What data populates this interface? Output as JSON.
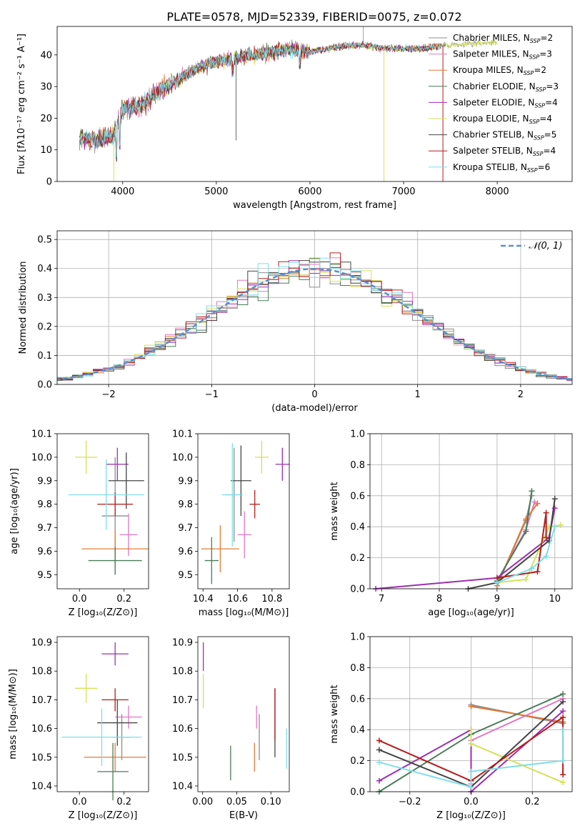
{
  "title": "PLATE=0578, MJD=52339, FIBERID=0075, z=0.072",
  "colors": {
    "grid": "#b0b0b0",
    "normal": "#5b8fd1"
  },
  "models": [
    {
      "label": "Chabrier MILES, N",
      "nssp": "=2",
      "color": "#8c8c8c"
    },
    {
      "label": "Salpeter MILES, N",
      "nssp": "=3",
      "color": "#e377c2"
    },
    {
      "label": "Kroupa MILES, N",
      "nssp": "=2",
      "color": "#e07b39"
    },
    {
      "label": "Chabrier ELODIE, N",
      "nssp": "=3",
      "color": "#4a7c59"
    },
    {
      "label": "Salpeter ELODIE, N",
      "nssp": "=4",
      "color": "#9c2fb0"
    },
    {
      "label": "Kroupa ELODIE, N",
      "nssp": "=4",
      "color": "#d4e157"
    },
    {
      "label": "Chabrier STELIB, N",
      "nssp": "=5",
      "color": "#444444"
    },
    {
      "label": "Salpeter STELIB, N",
      "nssp": "=4",
      "color": "#b71c1c"
    },
    {
      "label": "Kroupa STELIB, N",
      "nssp": "=6",
      "color": "#80deea"
    }
  ],
  "chart_data": [
    {
      "id": "spectrum",
      "type": "line",
      "xlabel": "wavelength [Angstrom, rest frame]",
      "ylabel": "Flux [fλ10⁻¹⁷ erg cm⁻² s⁻¹ A⁻¹]",
      "xlim": [
        3300,
        8800
      ],
      "ylim": [
        0,
        49
      ],
      "xticks": [
        4000,
        5000,
        6000,
        7000,
        8000
      ],
      "yticks": [
        0,
        10,
        20,
        30,
        40
      ],
      "x": [
        3550,
        3700,
        3900,
        4000,
        4200,
        4400,
        4600,
        4800,
        5000,
        5200,
        5400,
        5600,
        5800,
        6000,
        6200,
        6400,
        6600,
        6800,
        7000,
        7200,
        7400
      ],
      "y": [
        14,
        13,
        14,
        23,
        24,
        29,
        32,
        36,
        38,
        39,
        40,
        41,
        42,
        41,
        42,
        43,
        43,
        42,
        42,
        42,
        43
      ],
      "spectrum_end": 8000,
      "spectrum_end_flux": 44
    },
    {
      "id": "residuals",
      "type": "area",
      "xlabel": "(data-model)/error",
      "ylabel": "Normed distribution",
      "xlim": [
        -2.5,
        2.5
      ],
      "ylim": [
        0,
        0.53
      ],
      "xticks": [
        -2,
        -1,
        0,
        1,
        2
      ],
      "yticks": [
        0.0,
        0.1,
        0.2,
        0.3,
        0.4,
        0.5
      ],
      "legend": "𝒩(0, 1)",
      "bin_width": 0.1
    },
    {
      "id": "z-age",
      "type": "scatter",
      "xlabel": "Z [log₁₀(Z/Z⊙)]",
      "ylabel": "age  [log₁₀(age/yr)]",
      "xlim": [
        -0.1,
        0.31
      ],
      "ylim": [
        9.44,
        10.1
      ],
      "xticks": [
        0.0,
        0.2
      ],
      "yticks": [
        9.5,
        9.6,
        9.7,
        9.8,
        9.9,
        10.0,
        10.1
      ],
      "points": [
        {
          "x": 0.16,
          "y": 9.75,
          "xerr": 0.06,
          "yerr": 0.25
        },
        {
          "x": 0.22,
          "y": 9.67,
          "xerr": 0.04,
          "yerr": 0.09
        },
        {
          "x": 0.16,
          "y": 9.61,
          "xerr": 0.15,
          "yerr": 0.08
        },
        {
          "x": 0.16,
          "y": 9.56,
          "xerr": 0.12,
          "yerr": 0.06
        },
        {
          "x": 0.17,
          "y": 9.97,
          "xerr": 0.05,
          "yerr": 0.07
        },
        {
          "x": 0.03,
          "y": 10.0,
          "xerr": 0.05,
          "yerr": 0.07
        },
        {
          "x": 0.21,
          "y": 9.9,
          "xerr": 0.08,
          "yerr": 0.12
        },
        {
          "x": 0.16,
          "y": 9.8,
          "xerr": 0.08,
          "yerr": 0.05
        },
        {
          "x": 0.12,
          "y": 9.84,
          "xerr": 0.17,
          "yerr": 0.15
        }
      ]
    },
    {
      "id": "mass-age",
      "type": "scatter",
      "xlabel": "mass [log₁₀(M/M⊙)]",
      "ylabel": "",
      "xlim": [
        10.37,
        10.9
      ],
      "ylim": [
        9.44,
        10.1
      ],
      "xticks": [
        10.4,
        10.6,
        10.8
      ],
      "yticks": [
        9.5,
        9.6,
        9.7,
        9.8,
        9.9,
        10.0,
        10.1
      ],
      "points": [
        {
          "x": 10.58,
          "y": 9.84,
          "xerr": 0.05,
          "yerr": 0.2
        },
        {
          "x": 10.64,
          "y": 9.67,
          "xerr": 0.04,
          "yerr": 0.1
        },
        {
          "x": 10.5,
          "y": 9.61,
          "xerr": 0.11,
          "yerr": 0.1
        },
        {
          "x": 10.45,
          "y": 9.56,
          "xerr": 0.04,
          "yerr": 0.1
        },
        {
          "x": 10.86,
          "y": 9.97,
          "xerr": 0.04,
          "yerr": 0.07
        },
        {
          "x": 10.74,
          "y": 10.0,
          "xerr": 0.04,
          "yerr": 0.07
        },
        {
          "x": 10.62,
          "y": 9.9,
          "xerr": 0.06,
          "yerr": 0.15
        },
        {
          "x": 10.7,
          "y": 9.8,
          "xerr": 0.03,
          "yerr": 0.06
        },
        {
          "x": 10.57,
          "y": 9.84,
          "xerr": 0.06,
          "yerr": 0.22
        }
      ]
    },
    {
      "id": "age-weight",
      "type": "line",
      "xlabel": "age  [log₁₀(age/yr)]",
      "ylabel": "mass weight",
      "xlim": [
        6.8,
        10.3
      ],
      "ylim": [
        0,
        1.0
      ],
      "xticks": [
        7,
        8,
        9,
        10
      ],
      "yticks": [
        0.0,
        0.2,
        0.4,
        0.6,
        0.8,
        1.0
      ],
      "series": [
        {
          "x": [
            9.0,
            9.5,
            9.6
          ],
          "y": [
            0.02,
            0.44,
            0.6
          ]
        },
        {
          "x": [
            9.0,
            9.5,
            9.65
          ],
          "y": [
            0.05,
            0.38,
            0.56
          ]
        },
        {
          "x": [
            9.0,
            9.5,
            9.7
          ],
          "y": [
            0.02,
            0.45,
            0.55
          ]
        },
        {
          "x": [
            9.0,
            9.5,
            9.6
          ],
          "y": [
            0.05,
            0.37,
            0.63
          ]
        },
        {
          "x": [
            6.9,
            9.0,
            9.9,
            10.0
          ],
          "y": [
            0.0,
            0.07,
            0.33,
            0.52
          ]
        },
        {
          "x": [
            9.0,
            9.5,
            9.9,
            10.1
          ],
          "y": [
            0.04,
            0.06,
            0.4,
            0.41
          ]
        },
        {
          "x": [
            8.5,
            9.0,
            9.9,
            10.0
          ],
          "y": [
            0.0,
            0.04,
            0.31,
            0.58
          ]
        },
        {
          "x": [
            9.0,
            9.7,
            9.85,
            9.85
          ],
          "y": [
            0.07,
            0.11,
            0.49,
            0.33
          ]
        },
        {
          "x": [
            9.0,
            9.6,
            9.85,
            10.0
          ],
          "y": [
            0.04,
            0.13,
            0.21,
            0.4
          ]
        }
      ]
    },
    {
      "id": "z-mass",
      "type": "scatter",
      "xlabel": "Z [log₁₀(Z/Z⊙)]",
      "ylabel": "mass [log₁₀(M/M⊙)]",
      "xlim": [
        -0.1,
        0.31
      ],
      "ylim": [
        10.38,
        10.92
      ],
      "xticks": [
        0.0,
        0.2
      ],
      "yticks": [
        10.4,
        10.5,
        10.6,
        10.7,
        10.8,
        10.9
      ],
      "points": [
        {
          "x": 0.19,
          "y": 10.57,
          "xerr": 0.04,
          "yerr": 0.08
        },
        {
          "x": 0.22,
          "y": 10.64,
          "xerr": 0.06,
          "yerr": 0.04
        },
        {
          "x": 0.16,
          "y": 10.5,
          "xerr": 0.14,
          "yerr": 0.05
        },
        {
          "x": 0.15,
          "y": 10.45,
          "xerr": 0.07,
          "yerr": 0.1
        },
        {
          "x": 0.16,
          "y": 10.86,
          "xerr": 0.06,
          "yerr": 0.04
        },
        {
          "x": 0.03,
          "y": 10.74,
          "xerr": 0.05,
          "yerr": 0.05
        },
        {
          "x": 0.17,
          "y": 10.62,
          "xerr": 0.09,
          "yerr": 0.08
        },
        {
          "x": 0.16,
          "y": 10.7,
          "xerr": 0.06,
          "yerr": 0.04
        },
        {
          "x": 0.1,
          "y": 10.57,
          "xerr": 0.18,
          "yerr": 0.1
        }
      ]
    },
    {
      "id": "ebv-mass",
      "type": "scatter",
      "xlabel": "E(B-V)",
      "ylabel": "",
      "xlim": [
        -0.007,
        0.127
      ],
      "ylim": [
        10.38,
        10.92
      ],
      "xticks": [
        0.0,
        0.05,
        0.1
      ],
      "yticks": [
        10.4,
        10.5,
        10.6,
        10.7,
        10.8,
        10.9
      ],
      "points": [
        {
          "x": 0.083,
          "y": 10.57,
          "yerr": 0.08
        },
        {
          "x": 0.079,
          "y": 10.64,
          "yerr": 0.04
        },
        {
          "x": 0.076,
          "y": 10.5,
          "yerr": 0.05
        },
        {
          "x": 0.041,
          "y": 10.48,
          "yerr": 0.06
        },
        {
          "x": 0.001,
          "y": 10.85,
          "yerr": 0.05
        },
        {
          "x": 0.001,
          "y": 10.73,
          "yerr": 0.06
        },
        {
          "x": 0.106,
          "y": 10.62,
          "yerr": 0.12
        },
        {
          "x": 0.106,
          "y": 10.65,
          "yerr": 0.09
        },
        {
          "x": 0.123,
          "y": 10.53,
          "yerr": 0.07
        }
      ]
    },
    {
      "id": "z-weight",
      "type": "line",
      "xlabel": "Z [log₁₀(Z/Z⊙)]",
      "ylabel": "mass weight",
      "xlim": [
        -0.33,
        0.33
      ],
      "ylim": [
        0,
        1.0
      ],
      "xticks": [
        -0.2,
        0.0,
        0.2
      ],
      "yticks": [
        0.0,
        0.2,
        0.4,
        0.6,
        0.8,
        1.0
      ],
      "series": [
        {
          "x": [
            0.0,
            0.3
          ],
          "y": [
            0.56,
            0.44
          ]
        },
        {
          "x": [
            0.0,
            0.0,
            0.3
          ],
          "y": [
            0.05,
            0.33,
            0.6
          ]
        },
        {
          "x": [
            0.0,
            0.3
          ],
          "y": [
            0.55,
            0.45
          ]
        },
        {
          "x": [
            -0.3,
            0.0,
            0.3
          ],
          "y": [
            0.0,
            0.37,
            0.63
          ]
        },
        {
          "x": [
            -0.3,
            0.0,
            0.0,
            0.3
          ],
          "y": [
            0.07,
            0.4,
            0.0,
            0.52
          ]
        },
        {
          "x": [
            0.0,
            0.0,
            0.3
          ],
          "y": [
            0.4,
            0.31,
            0.06
          ]
        },
        {
          "x": [
            -0.3,
            0.0,
            0.3
          ],
          "y": [
            0.27,
            0.03,
            0.58
          ]
        },
        {
          "x": [
            -0.3,
            0.0,
            0.3,
            0.3
          ],
          "y": [
            0.33,
            0.07,
            0.48,
            0.11
          ]
        },
        {
          "x": [
            -0.3,
            0.0,
            0.0,
            0.3,
            0.3
          ],
          "y": [
            0.19,
            0.03,
            0.13,
            0.2,
            0.4
          ]
        }
      ]
    }
  ]
}
